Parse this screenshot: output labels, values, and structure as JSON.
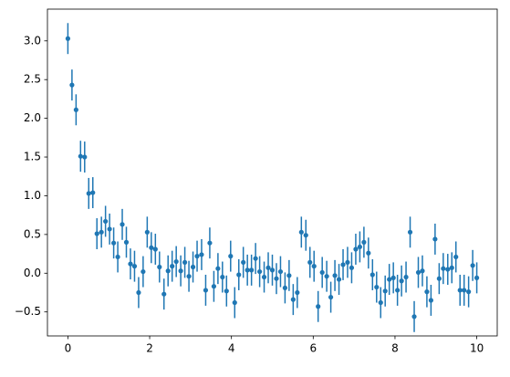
{
  "chart_data": {
    "type": "errorbar",
    "color": "#1f77b4",
    "yerr": 0.2,
    "x": [
      0,
      0.1,
      0.2,
      0.31,
      0.41,
      0.51,
      0.61,
      0.71,
      0.82,
      0.92,
      1.02,
      1.12,
      1.22,
      1.33,
      1.43,
      1.53,
      1.63,
      1.73,
      1.84,
      1.94,
      2.04,
      2.14,
      2.24,
      2.35,
      2.45,
      2.55,
      2.65,
      2.76,
      2.86,
      2.96,
      3.06,
      3.16,
      3.27,
      3.37,
      3.47,
      3.57,
      3.67,
      3.78,
      3.88,
      3.98,
      4.08,
      4.18,
      4.29,
      4.39,
      4.49,
      4.59,
      4.69,
      4.8,
      4.9,
      5,
      5.1,
      5.2,
      5.31,
      5.41,
      5.51,
      5.61,
      5.71,
      5.82,
      5.92,
      6.02,
      6.12,
      6.22,
      6.33,
      6.43,
      6.53,
      6.63,
      6.73,
      6.84,
      6.94,
      7.04,
      7.14,
      7.24,
      7.35,
      7.45,
      7.55,
      7.65,
      7.76,
      7.86,
      7.96,
      8.06,
      8.16,
      8.27,
      8.37,
      8.47,
      8.57,
      8.67,
      8.78,
      8.88,
      8.98,
      9.08,
      9.18,
      9.29,
      9.39,
      9.49,
      9.59,
      9.69,
      9.8,
      9.9,
      10
    ],
    "y": [
      3.03,
      2.43,
      2.11,
      1.51,
      1.5,
      1.03,
      1.04,
      0.51,
      0.53,
      0.67,
      0.57,
      0.39,
      0.21,
      0.63,
      0.4,
      0.12,
      0.09,
      -0.25,
      0.02,
      0.53,
      0.33,
      0.31,
      0.08,
      -0.27,
      0.03,
      0.09,
      0.15,
      0.03,
      0.14,
      -0.04,
      0.08,
      0.22,
      0.24,
      -0.22,
      0.39,
      -0.17,
      0.06,
      -0.05,
      -0.23,
      0.22,
      -0.38,
      -0.02,
      0.14,
      0.04,
      0.04,
      0.19,
      0.02,
      -0.05,
      0.07,
      0.04,
      -0.07,
      0.02,
      -0.19,
      -0.03,
      -0.34,
      -0.25,
      0.53,
      0.49,
      0.14,
      0.09,
      -0.43,
      0.01,
      -0.04,
      -0.31,
      -0.03,
      -0.08,
      0.11,
      0.14,
      0.07,
      0.31,
      0.34,
      0.4,
      0.26,
      -0.02,
      -0.18,
      -0.38,
      -0.23,
      -0.08,
      -0.06,
      -0.22,
      -0.1,
      -0.05,
      0.53,
      -0.56,
      0.01,
      0.03,
      -0.24,
      -0.35,
      0.44,
      -0.07,
      0.06,
      0.05,
      0.07,
      0.21,
      -0.22,
      -0.22,
      -0.24,
      0.1,
      -0.06
    ],
    "xlim": [
      -0.5,
      10.5
    ],
    "ylim": [
      -0.81,
      3.41
    ],
    "xticks": [
      0,
      2,
      4,
      6,
      8,
      10
    ],
    "yticks": [
      {
        "value": -0.5,
        "label": "−0.5"
      },
      {
        "value": 0,
        "label": "0.0"
      },
      {
        "value": 0.5,
        "label": "0.5"
      },
      {
        "value": 1,
        "label": "1.0"
      },
      {
        "value": 1.5,
        "label": "1.5"
      },
      {
        "value": 2,
        "label": "2.0"
      },
      {
        "value": 2.5,
        "label": "2.5"
      },
      {
        "value": 3,
        "label": "3.0"
      }
    ]
  }
}
